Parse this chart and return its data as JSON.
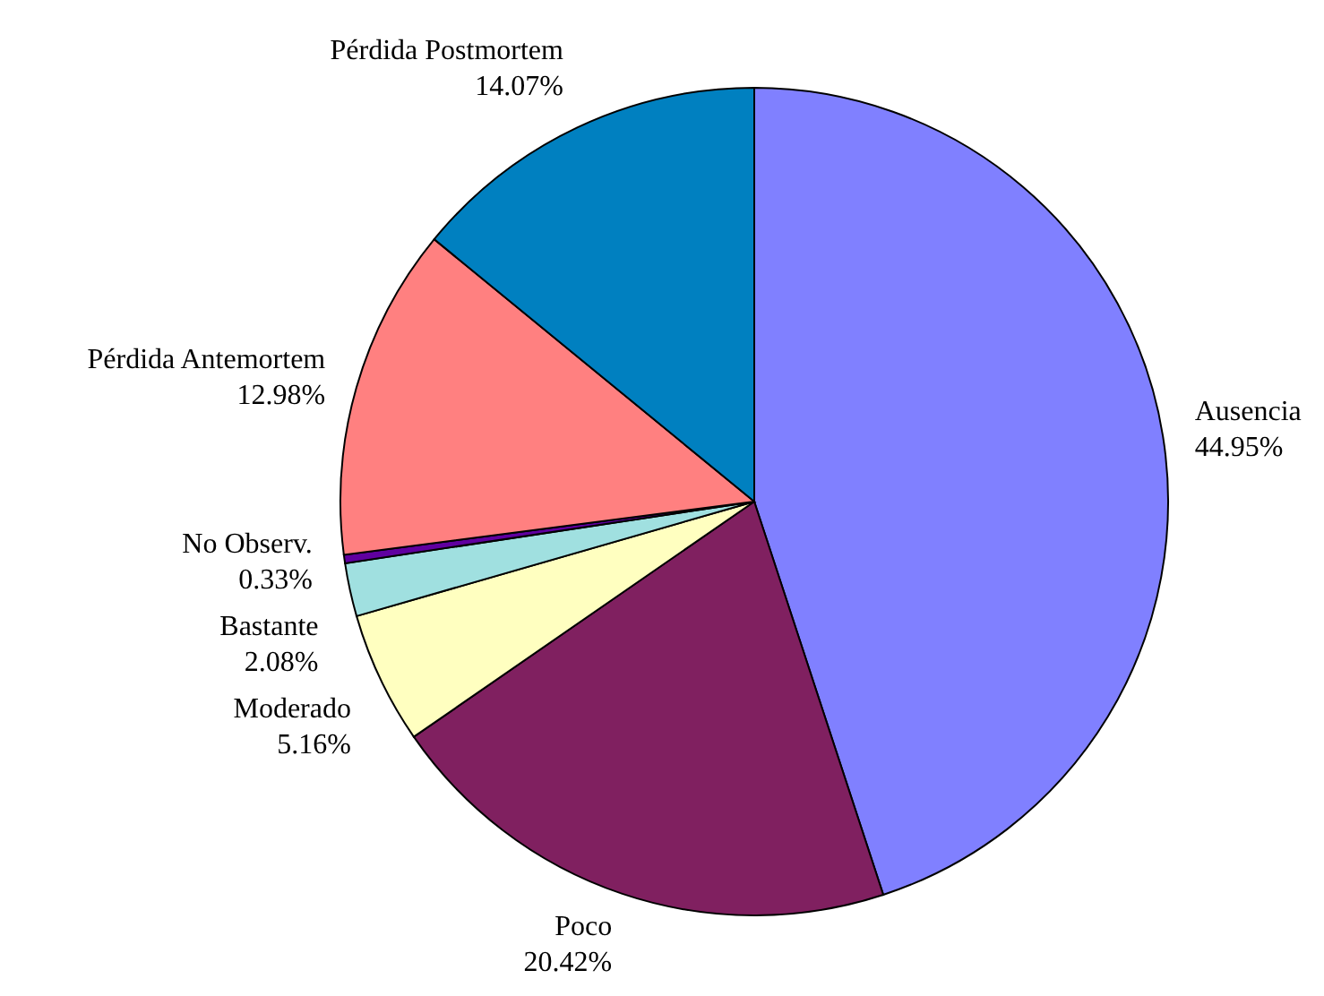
{
  "chart_data": {
    "type": "pie",
    "categories": [
      "Ausencia",
      "Poco",
      "Moderado",
      "Bastante",
      "No Observ.",
      "Pérdida Antemortem",
      "Pérdida Postmortem"
    ],
    "values": [
      44.95,
      20.42,
      5.16,
      2.08,
      0.33,
      12.98,
      14.07
    ],
    "colors": [
      "#8080ff",
      "#802060",
      "#ffffc0",
      "#a0e0e0",
      "#6000a0",
      "#ff8080",
      "#0080c0"
    ],
    "value_labels": [
      "44.95%",
      "20.42%",
      "5.16%",
      "2.08%",
      "0.33%",
      "12.98%",
      "14.07%"
    ]
  }
}
